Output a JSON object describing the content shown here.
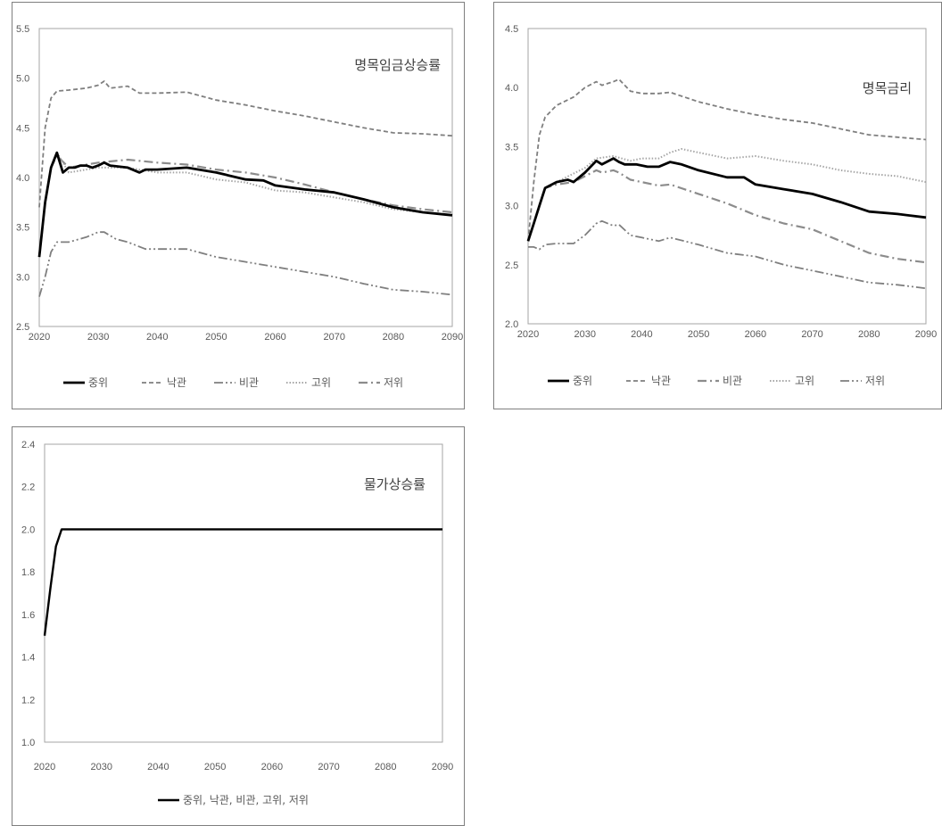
{
  "chart_data": [
    {
      "type": "line",
      "title": "명목임금상승률",
      "xlabel": "",
      "ylabel": "",
      "xlim": [
        2020,
        2090
      ],
      "ylim": [
        2.5,
        5.5
      ],
      "xticks": [
        "2020",
        "2030",
        "2040",
        "2050",
        "2060",
        "2070",
        "2080",
        "2090"
      ],
      "yticks": [
        "2.5",
        "3.0",
        "3.5",
        "4.0",
        "4.5",
        "5.0",
        "5.5"
      ],
      "grid": false,
      "legend": "bottom",
      "series": [
        {
          "name": "중위",
          "color": "#000000",
          "dash": "solid",
          "width": 2.8,
          "x": [
            2020,
            2021,
            2022,
            2023,
            2024,
            2025,
            2026,
            2027,
            2028,
            2029,
            2030,
            2031,
            2032,
            2035,
            2037,
            2038,
            2040,
            2045,
            2050,
            2055,
            2058,
            2060,
            2065,
            2070,
            2075,
            2080,
            2085,
            2090
          ],
          "y": [
            3.2,
            3.75,
            4.1,
            4.25,
            4.05,
            4.1,
            4.1,
            4.12,
            4.12,
            4.1,
            4.12,
            4.15,
            4.12,
            4.1,
            4.05,
            4.08,
            4.08,
            4.1,
            4.05,
            3.98,
            3.97,
            3.92,
            3.88,
            3.85,
            3.78,
            3.7,
            3.65,
            3.62
          ]
        },
        {
          "name": "낙관",
          "color": "#7f7f7f",
          "dash": "5,3",
          "width": 1.8,
          "x": [
            2020,
            2021,
            2022,
            2023,
            2025,
            2028,
            2030,
            2031,
            2032,
            2035,
            2037,
            2040,
            2045,
            2050,
            2055,
            2060,
            2065,
            2070,
            2075,
            2080,
            2085,
            2090
          ],
          "y": [
            3.7,
            4.5,
            4.8,
            4.87,
            4.88,
            4.9,
            4.93,
            4.97,
            4.9,
            4.92,
            4.85,
            4.85,
            4.86,
            4.78,
            4.73,
            4.67,
            4.62,
            4.56,
            4.5,
            4.45,
            4.44,
            4.42
          ]
        },
        {
          "name": "비관",
          "color": "#7f7f7f",
          "dash": "10,3,2,3,2,3",
          "width": 1.8,
          "x": [
            2020,
            2021,
            2022,
            2023,
            2025,
            2028,
            2030,
            2031,
            2033,
            2035,
            2038,
            2040,
            2045,
            2050,
            2055,
            2060,
            2065,
            2070,
            2075,
            2080,
            2085,
            2090
          ],
          "y": [
            2.8,
            3.0,
            3.25,
            3.35,
            3.35,
            3.4,
            3.45,
            3.45,
            3.38,
            3.35,
            3.28,
            3.28,
            3.28,
            3.2,
            3.15,
            3.1,
            3.05,
            3.0,
            2.93,
            2.87,
            2.85,
            2.82
          ]
        },
        {
          "name": "고위",
          "color": "#a6a6a6",
          "dash": "1.5,2",
          "width": 2,
          "x": [
            2020,
            2021,
            2022,
            2023,
            2025,
            2030,
            2035,
            2040,
            2045,
            2050,
            2055,
            2060,
            2065,
            2070,
            2075,
            2080,
            2085,
            2090
          ],
          "y": [
            3.2,
            3.75,
            4.1,
            4.25,
            4.05,
            4.1,
            4.1,
            4.05,
            4.05,
            3.98,
            3.95,
            3.87,
            3.85,
            3.8,
            3.75,
            3.68,
            3.65,
            3.62
          ]
        },
        {
          "name": "저위",
          "color": "#8c8c8c",
          "dash": "10,4,2,4",
          "width": 2.2,
          "x": [
            2020,
            2021,
            2022,
            2023,
            2025,
            2030,
            2035,
            2040,
            2045,
            2050,
            2055,
            2060,
            2065,
            2070,
            2075,
            2080,
            2085,
            2090
          ],
          "y": [
            3.2,
            3.75,
            4.1,
            4.22,
            4.1,
            4.15,
            4.18,
            4.15,
            4.13,
            4.08,
            4.05,
            4.0,
            3.93,
            3.85,
            3.78,
            3.72,
            3.68,
            3.65
          ]
        }
      ]
    },
    {
      "type": "line",
      "title": "명목금리",
      "xlabel": "",
      "ylabel": "",
      "xlim": [
        2020,
        2090
      ],
      "ylim": [
        2.0,
        4.5
      ],
      "xticks": [
        "2020",
        "2030",
        "2040",
        "2050",
        "2060",
        "2070",
        "2080",
        "2090"
      ],
      "yticks": [
        "2.0",
        "2.5",
        "3.0",
        "3.5",
        "4.0",
        "4.5"
      ],
      "grid": false,
      "legend": "bottom",
      "series": [
        {
          "name": "중위",
          "color": "#000000",
          "dash": "solid",
          "width": 2.8,
          "x": [
            2020,
            2021,
            2022,
            2023,
            2025,
            2027,
            2028,
            2030,
            2032,
            2033,
            2035,
            2036,
            2037,
            2039,
            2041,
            2043,
            2045,
            2047,
            2050,
            2055,
            2058,
            2060,
            2065,
            2070,
            2075,
            2080,
            2085,
            2090
          ],
          "y": [
            2.7,
            2.85,
            3.0,
            3.15,
            3.2,
            3.22,
            3.2,
            3.28,
            3.38,
            3.35,
            3.4,
            3.37,
            3.35,
            3.35,
            3.33,
            3.33,
            3.37,
            3.35,
            3.3,
            3.24,
            3.24,
            3.18,
            3.14,
            3.1,
            3.03,
            2.95,
            2.93,
            2.9
          ]
        },
        {
          "name": "낙관",
          "color": "#7f7f7f",
          "dash": "5,3",
          "width": 1.8,
          "x": [
            2020,
            2021,
            2022,
            2023,
            2025,
            2028,
            2030,
            2032,
            2033,
            2035,
            2036,
            2038,
            2040,
            2043,
            2045,
            2050,
            2055,
            2060,
            2065,
            2070,
            2075,
            2080,
            2085,
            2090
          ],
          "y": [
            2.7,
            3.2,
            3.6,
            3.75,
            3.85,
            3.92,
            4.0,
            4.05,
            4.02,
            4.05,
            4.07,
            3.97,
            3.95,
            3.95,
            3.96,
            3.88,
            3.82,
            3.77,
            3.73,
            3.7,
            3.65,
            3.6,
            3.58,
            3.56
          ]
        },
        {
          "name": "비관",
          "color": "#8c8c8c",
          "dash": "10,4,2,4",
          "width": 2.2,
          "x": [
            2020,
            2021,
            2022,
            2023,
            2025,
            2028,
            2030,
            2032,
            2033,
            2035,
            2036,
            2038,
            2040,
            2043,
            2045,
            2050,
            2055,
            2060,
            2065,
            2070,
            2075,
            2080,
            2085,
            2090
          ],
          "y": [
            2.7,
            2.85,
            3.0,
            3.15,
            3.18,
            3.2,
            3.25,
            3.3,
            3.28,
            3.3,
            3.28,
            3.22,
            3.2,
            3.17,
            3.18,
            3.1,
            3.02,
            2.92,
            2.85,
            2.8,
            2.7,
            2.6,
            2.55,
            2.52
          ]
        },
        {
          "name": "고위",
          "color": "#a6a6a6",
          "dash": "1.5,2",
          "width": 2,
          "x": [
            2020,
            2021,
            2022,
            2023,
            2025,
            2030,
            2032,
            2035,
            2038,
            2040,
            2043,
            2045,
            2047,
            2050,
            2055,
            2060,
            2065,
            2070,
            2075,
            2080,
            2085,
            2090
          ],
          "y": [
            2.7,
            2.85,
            3.0,
            3.15,
            3.2,
            3.32,
            3.4,
            3.42,
            3.38,
            3.4,
            3.4,
            3.45,
            3.48,
            3.45,
            3.4,
            3.42,
            3.38,
            3.35,
            3.3,
            3.27,
            3.25,
            3.2
          ]
        },
        {
          "name": "저위",
          "color": "#7f7f7f",
          "dash": "10,3,2,3,2,3",
          "width": 1.8,
          "x": [
            2020,
            2021,
            2022,
            2023,
            2025,
            2028,
            2030,
            2032,
            2033,
            2035,
            2036,
            2038,
            2040,
            2043,
            2045,
            2050,
            2055,
            2060,
            2065,
            2070,
            2075,
            2080,
            2085,
            2090
          ],
          "y": [
            2.65,
            2.65,
            2.63,
            2.67,
            2.68,
            2.68,
            2.75,
            2.85,
            2.87,
            2.83,
            2.84,
            2.75,
            2.73,
            2.7,
            2.73,
            2.67,
            2.6,
            2.57,
            2.5,
            2.45,
            2.4,
            2.35,
            2.33,
            2.3
          ]
        }
      ]
    },
    {
      "type": "line",
      "title": "물가상승률",
      "xlabel": "",
      "ylabel": "",
      "xlim": [
        2020,
        2090
      ],
      "ylim": [
        1.0,
        2.4
      ],
      "xticks": [
        "2020",
        "2030",
        "2040",
        "2050",
        "2060",
        "2070",
        "2080",
        "2090"
      ],
      "yticks": [
        "1.0",
        "1.2",
        "1.4",
        "1.6",
        "1.8",
        "2.0",
        "2.2",
        "2.4"
      ],
      "grid": false,
      "legend": "bottom",
      "series": [
        {
          "name": "중위, 낙관, 비관, 고위, 저위",
          "color": "#000000",
          "dash": "solid",
          "width": 2.4,
          "x": [
            2020,
            2021,
            2022,
            2023,
            2024,
            2030,
            2040,
            2050,
            2060,
            2070,
            2080,
            2090
          ],
          "y": [
            1.5,
            1.72,
            1.92,
            2.0,
            2.0,
            2.0,
            2.0,
            2.0,
            2.0,
            2.0,
            2.0,
            2.0
          ]
        }
      ]
    }
  ]
}
